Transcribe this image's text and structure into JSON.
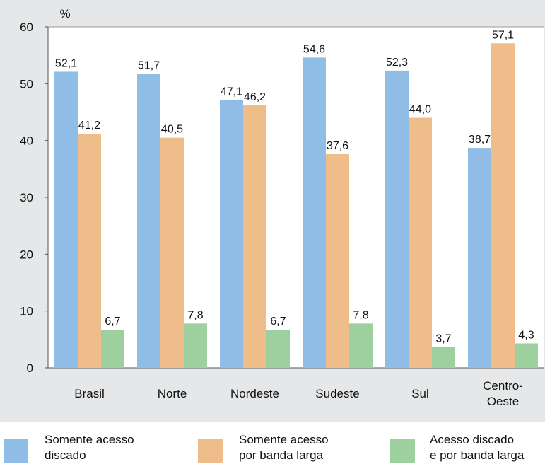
{
  "chart_data": {
    "type": "bar",
    "ylabel": "%",
    "ylim": [
      0,
      60
    ],
    "yticks": [
      0,
      10,
      20,
      30,
      40,
      50,
      60
    ],
    "grid": false,
    "legend_position": "bottom",
    "categories": [
      "Brasil",
      "Norte",
      "Nordeste",
      "Sudeste",
      "Sul",
      "Centro-\nOeste"
    ],
    "series": [
      {
        "name": "Somente acesso\ndiscado",
        "color": "#8fbde6",
        "values": [
          52.1,
          51.7,
          47.1,
          54.6,
          52.3,
          38.7
        ],
        "labels": [
          "52,1",
          "51,7",
          "47,1",
          "54,6",
          "52,3",
          "38,7"
        ]
      },
      {
        "name": "Somente acesso\npor banda larga",
        "color": "#efbd8a",
        "values": [
          41.2,
          40.5,
          46.2,
          37.6,
          44.0,
          57.1
        ],
        "labels": [
          "41,2",
          "40,5",
          "46,2",
          "37,6",
          "44,0",
          "57,1"
        ]
      },
      {
        "name": "Acesso discado\ne por banda larga",
        "color": "#9dcf9f",
        "values": [
          6.7,
          7.8,
          6.7,
          7.8,
          3.7,
          4.3
        ],
        "labels": [
          "6,7",
          "7,8",
          "6,7",
          "7,8",
          "3,7",
          "4,3"
        ]
      }
    ]
  }
}
